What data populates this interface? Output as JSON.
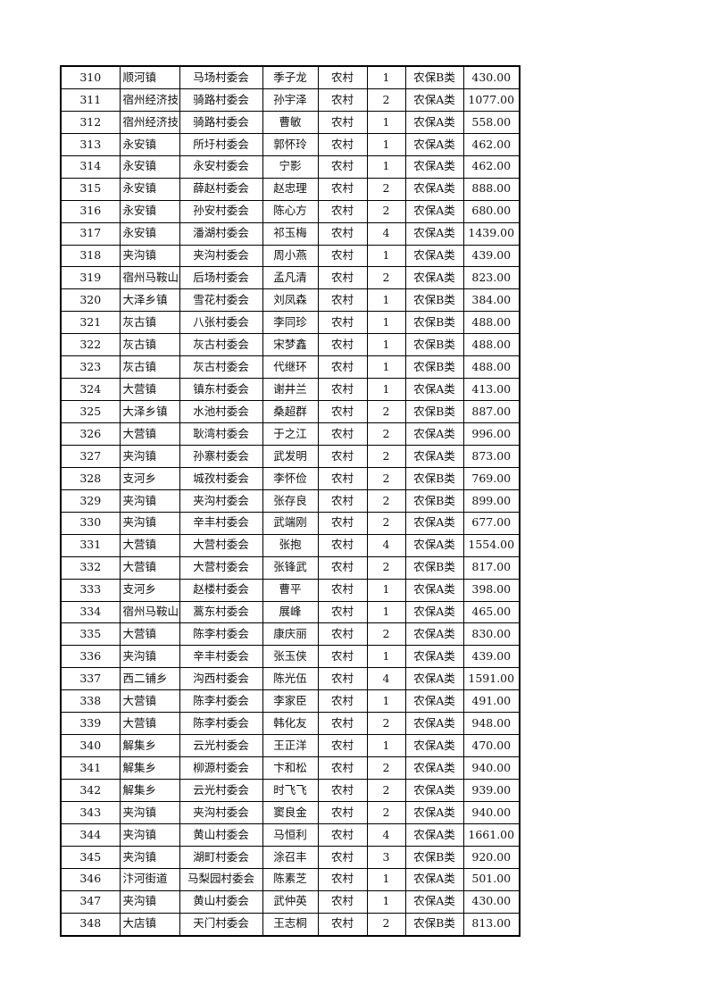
{
  "rows": [
    [
      "310",
      "顺河镇",
      "马场村委会",
      "季子龙",
      "农村",
      "1",
      "农保B类",
      "430.00"
    ],
    [
      "311",
      "宿州经济技",
      "骑路村委会",
      "孙宇泽",
      "农村",
      "2",
      "农保A类",
      "1077.00"
    ],
    [
      "312",
      "宿州经济技",
      "骑路村委会",
      "曹敏",
      "农村",
      "1",
      "农保A类",
      "558.00"
    ],
    [
      "313",
      "永安镇",
      "所圩村委会",
      "郭怀玲",
      "农村",
      "1",
      "农保A类",
      "462.00"
    ],
    [
      "314",
      "永安镇",
      "永安村委会",
      "宁影",
      "农村",
      "1",
      "农保A类",
      "462.00"
    ],
    [
      "315",
      "永安镇",
      "薛赵村委会",
      "赵忠理",
      "农村",
      "2",
      "农保A类",
      "888.00"
    ],
    [
      "316",
      "永安镇",
      "孙安村委会",
      "陈心方",
      "农村",
      "2",
      "农保A类",
      "680.00"
    ],
    [
      "317",
      "永安镇",
      "潘湖村委会",
      "祁玉梅",
      "农村",
      "4",
      "农保A类",
      "1439.00"
    ],
    [
      "318",
      "夹沟镇",
      "夹沟村委会",
      "周小燕",
      "农村",
      "1",
      "农保A类",
      "439.00"
    ],
    [
      "319",
      "宿州马鞍山",
      "后场村委会",
      "孟凡清",
      "农村",
      "2",
      "农保A类",
      "823.00"
    ],
    [
      "320",
      "大泽乡镇",
      "雪花村委会",
      "刘凤森",
      "农村",
      "1",
      "农保B类",
      "384.00"
    ],
    [
      "321",
      "灰古镇",
      "八张村委会",
      "李同珍",
      "农村",
      "1",
      "农保B类",
      "488.00"
    ],
    [
      "322",
      "灰古镇",
      "灰古村委会",
      "宋梦鑫",
      "农村",
      "1",
      "农保B类",
      "488.00"
    ],
    [
      "323",
      "灰古镇",
      "灰古村委会",
      "代继环",
      "农村",
      "1",
      "农保B类",
      "488.00"
    ],
    [
      "324",
      "大营镇",
      "镇东村委会",
      "谢井兰",
      "农村",
      "1",
      "农保A类",
      "413.00"
    ],
    [
      "325",
      "大泽乡镇",
      "水池村委会",
      "桑超群",
      "农村",
      "2",
      "农保B类",
      "887.00"
    ],
    [
      "326",
      "大营镇",
      "耿湾村委会",
      "于之江",
      "农村",
      "2",
      "农保A类",
      "996.00"
    ],
    [
      "327",
      "夹沟镇",
      "孙寨村委会",
      "武发明",
      "农村",
      "2",
      "农保A类",
      "873.00"
    ],
    [
      "328",
      "支河乡",
      "城孜村委会",
      "李怀俭",
      "农村",
      "2",
      "农保B类",
      "769.00"
    ],
    [
      "329",
      "夹沟镇",
      "夹沟村委会",
      "张存良",
      "农村",
      "2",
      "农保B类",
      "899.00"
    ],
    [
      "330",
      "夹沟镇",
      "辛丰村委会",
      "武端刚",
      "农村",
      "2",
      "农保A类",
      "677.00"
    ],
    [
      "331",
      "大营镇",
      "大营村委会",
      "张抱",
      "农村",
      "4",
      "农保A类",
      "1554.00"
    ],
    [
      "332",
      "大营镇",
      "大营村委会",
      "张锋武",
      "农村",
      "2",
      "农保B类",
      "817.00"
    ],
    [
      "333",
      "支河乡",
      "赵楼村委会",
      "曹平",
      "农村",
      "1",
      "农保A类",
      "398.00"
    ],
    [
      "334",
      "宿州马鞍山",
      "蒿东村委会",
      "展峰",
      "农村",
      "1",
      "农保A类",
      "465.00"
    ],
    [
      "335",
      "大营镇",
      "陈李村委会",
      "康庆丽",
      "农村",
      "2",
      "农保A类",
      "830.00"
    ],
    [
      "336",
      "夹沟镇",
      "辛丰村委会",
      "张玉侠",
      "农村",
      "1",
      "农保A类",
      "439.00"
    ],
    [
      "337",
      "西二铺乡",
      "沟西村委会",
      "陈光伍",
      "农村",
      "4",
      "农保A类",
      "1591.00"
    ],
    [
      "338",
      "大营镇",
      "陈李村委会",
      "李家臣",
      "农村",
      "1",
      "农保A类",
      "491.00"
    ],
    [
      "339",
      "大营镇",
      "陈李村委会",
      "韩化友",
      "农村",
      "2",
      "农保A类",
      "948.00"
    ],
    [
      "340",
      "解集乡",
      "云光村委会",
      "王正洋",
      "农村",
      "1",
      "农保A类",
      "470.00"
    ],
    [
      "341",
      "解集乡",
      "柳源村委会",
      "卞和松",
      "农村",
      "2",
      "农保A类",
      "940.00"
    ],
    [
      "342",
      "解集乡",
      "云光村委会",
      "时飞飞",
      "农村",
      "2",
      "农保A类",
      "939.00"
    ],
    [
      "343",
      "夹沟镇",
      "夹沟村委会",
      "窦良金",
      "农村",
      "2",
      "农保A类",
      "940.00"
    ],
    [
      "344",
      "夹沟镇",
      "黄山村委会",
      "马恒利",
      "农村",
      "4",
      "农保A类",
      "1661.00"
    ],
    [
      "345",
      "夹沟镇",
      "湖町村委会",
      "涂召丰",
      "农村",
      "3",
      "农保B类",
      "920.00"
    ],
    [
      "346",
      "汴河街道",
      "马梨园村委会",
      "陈素芝",
      "农村",
      "1",
      "农保A类",
      "501.00"
    ],
    [
      "347",
      "夹沟镇",
      "黄山村委会",
      "武仲英",
      "农村",
      "1",
      "农保A类",
      "430.00"
    ],
    [
      "348",
      "大店镇",
      "天门村委会",
      "王志桐",
      "农村",
      "2",
      "农保B类",
      "813.00"
    ]
  ]
}
